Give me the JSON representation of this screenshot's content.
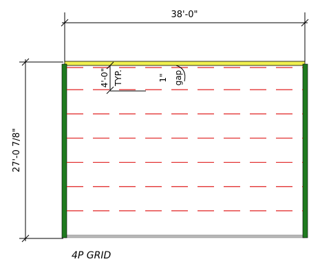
{
  "dimensions": {
    "width": "38'-0\"",
    "height": "27'-0 7/8\""
  },
  "annotations": {
    "spacing": "4'-0\"",
    "typical": "TYP.",
    "gap_size": "1\"",
    "gap_word": "gap"
  },
  "caption": "4P GRID",
  "grid": {
    "row_count": 7
  },
  "colors": {
    "side_rails": "#1f7a1f",
    "top_edge": "#f0f050",
    "bottom_edge": "#b8b8b8",
    "grid_dashes": "#e02020",
    "lines": "#000000"
  }
}
